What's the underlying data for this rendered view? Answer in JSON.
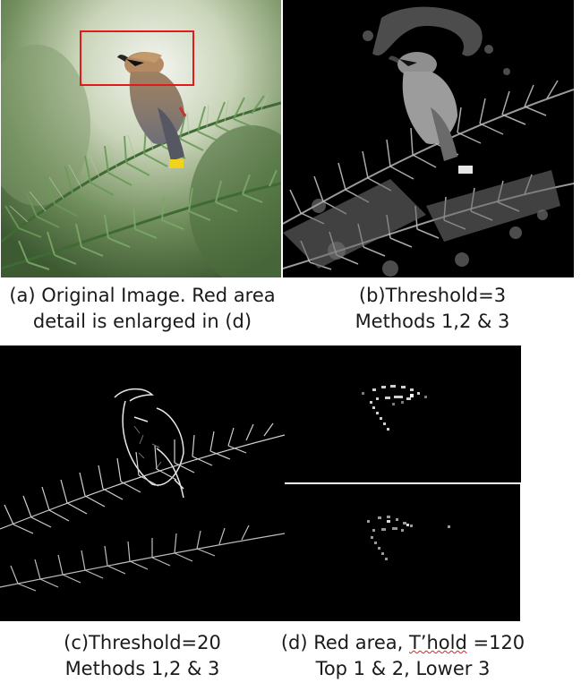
{
  "figure": {
    "panel_a": {
      "caption_line1": "(a) Original Image. Red area",
      "caption_line2": "detail is enlarged in (d)",
      "highlight_color": "#e01b1b"
    },
    "panel_b": {
      "caption_line1": "(b)Threshold=3",
      "caption_line2": "Methods 1,2 & 3"
    },
    "panel_c": {
      "caption_line1": "(c)Threshold=20",
      "caption_line2": "Methods 1,2 & 3"
    },
    "panel_d": {
      "caption_prefix": "(d) Red area, ",
      "caption_marked": "T’hold",
      "caption_suffix": " =120",
      "caption_line2": "Top 1 & 2, Lower 3"
    }
  }
}
